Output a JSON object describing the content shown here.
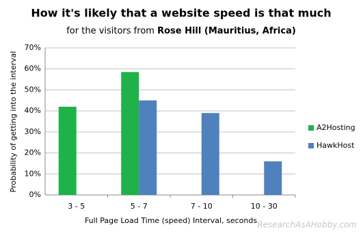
{
  "chart_data": {
    "type": "bar",
    "title": "How it's likely that a website speed is that much",
    "subtitle": "for the visitors from",
    "subtitle_location": "Rose Hill (Mauritius, Africa)",
    "x_label": "Full Page Load Time (speed)  Interval, seconds",
    "y_label": "Probability of getting into the interval",
    "categories": [
      "3 - 5",
      "5 - 7",
      "7 - 10",
      "10 - 30"
    ],
    "series": [
      {
        "name": "A2Hosting",
        "color": "#1fb24a",
        "values": [
          42,
          58.5,
          0,
          0
        ]
      },
      {
        "name": "HawkHost",
        "color": "#4f81bd",
        "values": [
          0,
          45,
          39,
          16
        ]
      }
    ],
    "ylim": [
      0,
      70
    ],
    "yticks": [
      {
        "value": 0,
        "label": "0%"
      },
      {
        "value": 10,
        "label": "10%"
      },
      {
        "value": 20,
        "label": "20%"
      },
      {
        "value": 30,
        "label": "30%"
      },
      {
        "value": 40,
        "label": "40%"
      },
      {
        "value": 50,
        "label": "50%"
      },
      {
        "value": 60,
        "label": "60%"
      },
      {
        "value": 70,
        "label": "70%"
      }
    ],
    "grid": true,
    "legend": "right",
    "watermark": "ResearchAsAHobby.com"
  }
}
